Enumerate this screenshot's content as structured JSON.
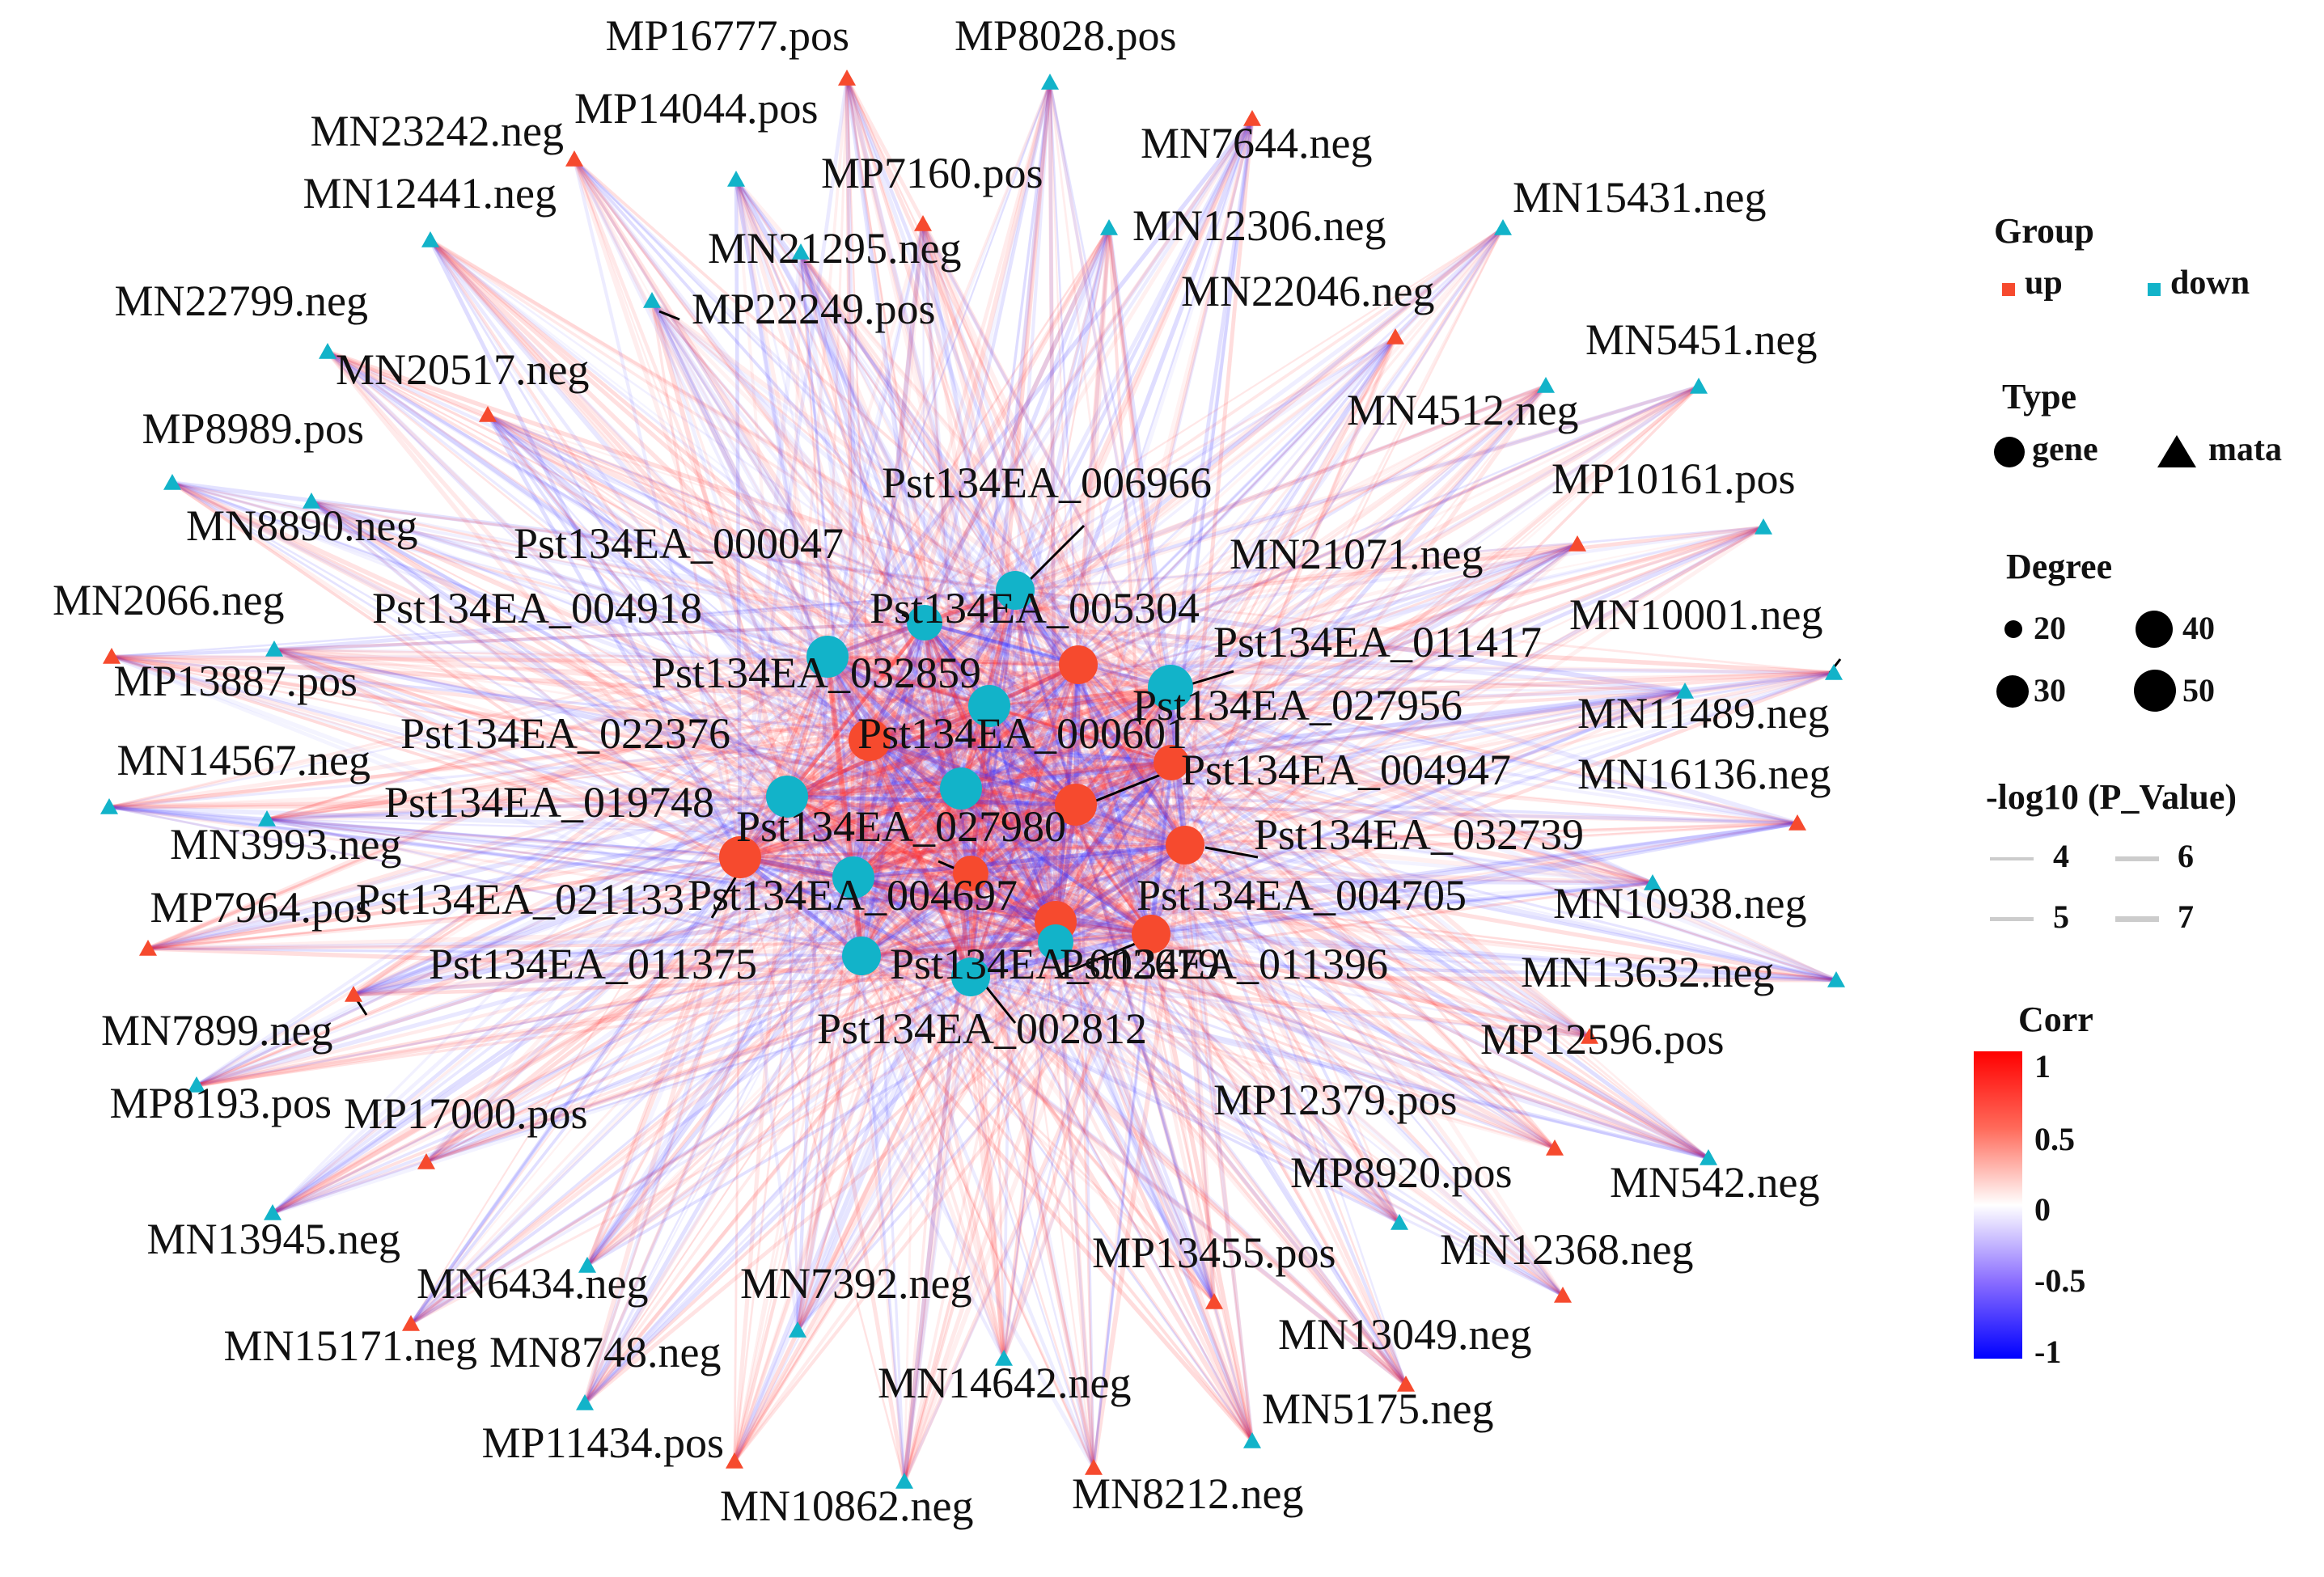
{
  "colors": {
    "up": "#f64a2e",
    "down": "#12b3c9",
    "corr_pos": "#ff2a2a",
    "corr_neg": "#3a30ff",
    "callout": "#000000"
  },
  "network": {
    "outer_nodes": [
      {
        "id": "MP16777.pos",
        "group": "up"
      },
      {
        "id": "MP8028.pos",
        "group": "down"
      },
      {
        "id": "MN7644.neg",
        "group": "up"
      },
      {
        "id": "MN15431.neg",
        "group": "down"
      },
      {
        "id": "MN5451.neg",
        "group": "down"
      },
      {
        "id": "MP10161.pos",
        "group": "down"
      },
      {
        "id": "MN10001.neg",
        "group": "down"
      },
      {
        "id": "MN11489.neg",
        "group": "down"
      },
      {
        "id": "MN16136.neg",
        "group": "up"
      },
      {
        "id": "MN10938.neg",
        "group": "down"
      },
      {
        "id": "MN13632.neg",
        "group": "down"
      },
      {
        "id": "MN542.neg",
        "group": "down"
      },
      {
        "id": "MN12368.neg",
        "group": "up"
      },
      {
        "id": "MN13049.neg",
        "group": "up"
      },
      {
        "id": "MN5175.neg",
        "group": "down"
      },
      {
        "id": "MN8212.neg",
        "group": "up"
      },
      {
        "id": "MN10862.neg",
        "group": "down"
      },
      {
        "id": "MP11434.pos",
        "group": "up"
      },
      {
        "id": "MN15171.neg",
        "group": "up"
      },
      {
        "id": "MN13945.neg",
        "group": "down"
      },
      {
        "id": "MP8193.pos",
        "group": "down"
      },
      {
        "id": "MP7964.pos",
        "group": "up"
      },
      {
        "id": "MN14567.neg",
        "group": "down"
      },
      {
        "id": "MP13887.pos",
        "group": "up"
      },
      {
        "id": "MP8989.pos",
        "group": "down"
      },
      {
        "id": "MN22799.neg",
        "group": "down"
      },
      {
        "id": "MN12441.neg",
        "group": "down"
      },
      {
        "id": "MN23242.neg",
        "group": "up"
      },
      {
        "id": "MP14044.pos",
        "group": "down"
      },
      {
        "id": "MP7160.pos",
        "group": "up"
      },
      {
        "id": "MN12306.neg",
        "group": "down"
      },
      {
        "id": "MN22046.neg",
        "group": "up"
      },
      {
        "id": "MN4512.neg",
        "group": "down"
      },
      {
        "id": "MN21071.neg",
        "group": "up"
      },
      {
        "id": "MN3993.neg",
        "group": "down"
      },
      {
        "id": "MN2066.neg",
        "group": "down"
      },
      {
        "id": "MN8890.neg",
        "group": "down"
      },
      {
        "id": "MN20517.neg",
        "group": "up"
      },
      {
        "id": "MP22249.pos",
        "group": "down"
      },
      {
        "id": "MN21295.neg",
        "group": "down"
      },
      {
        "id": "MN7899.neg",
        "group": "up"
      },
      {
        "id": "MP17000.pos",
        "group": "up"
      },
      {
        "id": "MN6434.neg",
        "group": "down"
      },
      {
        "id": "MN8748.neg",
        "group": "down"
      },
      {
        "id": "MN7392.neg",
        "group": "down"
      },
      {
        "id": "MN14642.neg",
        "group": "down"
      },
      {
        "id": "MP13455.pos",
        "group": "up"
      },
      {
        "id": "MP8920.pos",
        "group": "down"
      },
      {
        "id": "MP12379.pos",
        "group": "up"
      },
      {
        "id": "MP12596.pos",
        "group": "up"
      }
    ],
    "inner_nodes": [
      {
        "id": "Pst134EA_006966",
        "group": "down"
      },
      {
        "id": "Pst134EA_000047",
        "group": "down"
      },
      {
        "id": "Pst134EA_004918",
        "group": "down"
      },
      {
        "id": "Pst134EA_005304",
        "group": "up"
      },
      {
        "id": "Pst134EA_011417",
        "group": "down"
      },
      {
        "id": "Pst134EA_032859",
        "group": "down"
      },
      {
        "id": "Pst134EA_027956",
        "group": "up"
      },
      {
        "id": "Pst134EA_022376",
        "group": "up"
      },
      {
        "id": "Pst134EA_000601",
        "group": "down"
      },
      {
        "id": "Pst134EA_004947",
        "group": "up"
      },
      {
        "id": "Pst134EA_019748",
        "group": "down"
      },
      {
        "id": "Pst134EA_027980",
        "group": "up"
      },
      {
        "id": "Pst134EA_032739",
        "group": "up"
      },
      {
        "id": "Pst134EA_021133",
        "group": "up"
      },
      {
        "id": "Pst134EA_004697",
        "group": "down"
      },
      {
        "id": "Pst134EA_004705",
        "group": "up"
      },
      {
        "id": "Pst134EA_011375",
        "group": "down"
      },
      {
        "id": "Pst134EA_002679",
        "group": "up"
      },
      {
        "id": "Pst134EA_011396",
        "group": "down"
      },
      {
        "id": "Pst134EA_002812",
        "group": "down"
      }
    ]
  },
  "legend": {
    "group_title": "Group",
    "group_up": "up",
    "group_down": "down",
    "type_title": "Type",
    "type_gene": "gene",
    "type_mata": "mata",
    "degree_title": "Degree",
    "degree_20": "20",
    "degree_30": "30",
    "degree_40": "40",
    "degree_50": "50",
    "pvalue_title": "-log10 (P_Value)",
    "pv_4": "4",
    "pv_5": "5",
    "pv_6": "6",
    "pv_7": "7",
    "corr_title": "Corr",
    "corr_1": "1",
    "corr_05": "0.5",
    "corr_0": "0",
    "corr_m05": "-0.5",
    "corr_m1": "-1"
  }
}
